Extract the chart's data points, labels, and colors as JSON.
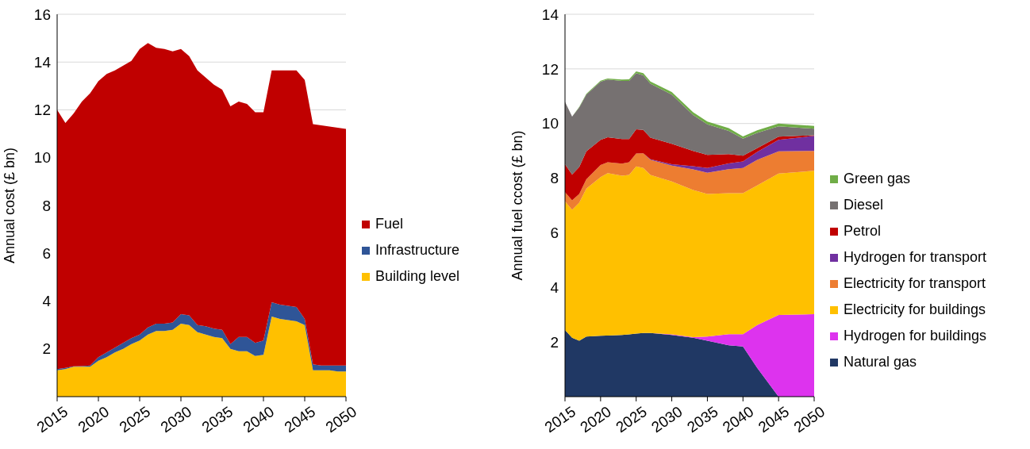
{
  "chart_data": [
    {
      "type": "area",
      "stacked": true,
      "ylabel": "Annual cost (£ bn)",
      "x": [
        2015,
        2016,
        2017,
        2018,
        2019,
        2020,
        2021,
        2022,
        2023,
        2024,
        2025,
        2026,
        2027,
        2028,
        2029,
        2030,
        2031,
        2032,
        2033,
        2034,
        2035,
        2036,
        2037,
        2038,
        2039,
        2040,
        2041,
        2042,
        2043,
        2044,
        2045,
        2046,
        2047,
        2048,
        2049,
        2050
      ],
      "xlim": [
        2015,
        2050
      ],
      "xticks": [
        2015,
        2020,
        2025,
        2030,
        2035,
        2040,
        2045,
        2050
      ],
      "ylim": [
        0,
        16
      ],
      "yticks": [
        2,
        4,
        6,
        8,
        10,
        12,
        14,
        16
      ],
      "grid": "y",
      "legend": "right",
      "series": [
        {
          "name": "Building level",
          "color": "#ffc000",
          "values": [
            1.1,
            1.15,
            1.25,
            1.25,
            1.25,
            1.5,
            1.65,
            1.85,
            2.0,
            2.2,
            2.35,
            2.6,
            2.75,
            2.75,
            2.8,
            3.05,
            3.0,
            2.7,
            2.6,
            2.5,
            2.45,
            2.0,
            1.9,
            1.9,
            1.7,
            1.75,
            3.35,
            3.25,
            3.2,
            3.15,
            3.0,
            1.1,
            1.1,
            1.1,
            1.05,
            1.05
          ]
        },
        {
          "name": "Infrastructure",
          "color": "#2f5597",
          "values": [
            0.05,
            0.05,
            0.02,
            0.03,
            0.05,
            0.15,
            0.2,
            0.2,
            0.25,
            0.25,
            0.25,
            0.3,
            0.3,
            0.3,
            0.3,
            0.4,
            0.4,
            0.3,
            0.35,
            0.35,
            0.35,
            0.2,
            0.6,
            0.6,
            0.55,
            0.6,
            0.6,
            0.6,
            0.6,
            0.6,
            0.25,
            0.25,
            0.2,
            0.2,
            0.25,
            0.25
          ]
        },
        {
          "name": "Fuel",
          "color": "#c00000",
          "values": [
            10.85,
            10.25,
            10.58,
            11.07,
            11.4,
            11.55,
            11.65,
            11.6,
            11.6,
            11.6,
            11.95,
            11.9,
            11.55,
            11.5,
            11.35,
            11.1,
            10.85,
            10.65,
            10.4,
            10.2,
            10.05,
            9.95,
            9.85,
            9.75,
            9.65,
            9.55,
            9.7,
            9.8,
            9.85,
            9.9,
            10.0,
            10.05,
            10.05,
            10.0,
            9.95,
            9.9
          ]
        }
      ]
    },
    {
      "type": "area",
      "stacked": true,
      "ylabel": "Annual fuel ccost (£ bn)",
      "x": [
        2015,
        2016,
        2017,
        2018,
        2020,
        2021,
        2023,
        2024,
        2025,
        2026,
        2027,
        2030,
        2033,
        2035,
        2038,
        2040,
        2042,
        2045,
        2050
      ],
      "xlim": [
        2015,
        2050
      ],
      "xticks": [
        2015,
        2020,
        2025,
        2030,
        2035,
        2040,
        2045,
        2050
      ],
      "ylim": [
        0,
        14
      ],
      "yticks": [
        2,
        4,
        6,
        8,
        10,
        12,
        14
      ],
      "grid": "y",
      "legend": "right",
      "series": [
        {
          "name": "Natural gas",
          "color": "#203864",
          "values": [
            2.44,
            2.16,
            2.05,
            2.2,
            2.23,
            2.24,
            2.26,
            2.28,
            2.31,
            2.33,
            2.33,
            2.26,
            2.16,
            2.05,
            1.88,
            1.84,
            1.05,
            0,
            0
          ]
        },
        {
          "name": "Hydrogen for buildings",
          "color": "#dd33ee",
          "values": [
            0,
            0,
            0,
            0,
            0,
            0,
            0,
            0,
            0,
            0,
            0,
            0.02,
            0.02,
            0.15,
            0.41,
            0.45,
            1.57,
            2.99,
            3.02
          ]
        },
        {
          "name": "Electricity for buildings",
          "color": "#ffc000",
          "values": [
            4.71,
            4.68,
            5.05,
            5.42,
            5.81,
            5.94,
            5.83,
            5.84,
            6.12,
            6.04,
            5.79,
            5.6,
            5.39,
            5.22,
            5.16,
            5.16,
            5.11,
            5.18,
            5.25
          ]
        },
        {
          "name": "Electricity for transport",
          "color": "#ed7d31",
          "values": [
            0.34,
            0.35,
            0.32,
            0.34,
            0.44,
            0.4,
            0.44,
            0.46,
            0.47,
            0.54,
            0.55,
            0.58,
            0.75,
            0.78,
            0.88,
            0.92,
            0.94,
            0.81,
            0.73
          ]
        },
        {
          "name": "Hydrogen for transport",
          "color": "#7030a0",
          "values": [
            0,
            0,
            0,
            0,
            0,
            0,
            0,
            0,
            0,
            0,
            0.02,
            0.05,
            0.12,
            0.17,
            0.21,
            0.24,
            0.29,
            0.42,
            0.55
          ]
        },
        {
          "name": "Petrol",
          "color": "#c00000",
          "values": [
            1.02,
            0.94,
            0.99,
            1.02,
            0.92,
            0.92,
            0.9,
            0.85,
            0.89,
            0.86,
            0.79,
            0.75,
            0.56,
            0.48,
            0.34,
            0.21,
            0.14,
            0.12,
            0.02
          ]
        },
        {
          "name": "Diesel",
          "color": "#767171",
          "values": [
            2.29,
            2.12,
            2.18,
            2.08,
            2.13,
            2.11,
            2.13,
            2.13,
            2.05,
            1.99,
            1.98,
            1.8,
            1.31,
            1.12,
            0.85,
            0.63,
            0.56,
            0.38,
            0.24
          ]
        },
        {
          "name": "Green gas",
          "color": "#70ad47",
          "values": [
            0,
            0,
            0.02,
            0.03,
            0.04,
            0.04,
            0.05,
            0.06,
            0.07,
            0.08,
            0.08,
            0.09,
            0.1,
            0.1,
            0.1,
            0.08,
            0.09,
            0.1,
            0.1
          ]
        }
      ]
    }
  ]
}
